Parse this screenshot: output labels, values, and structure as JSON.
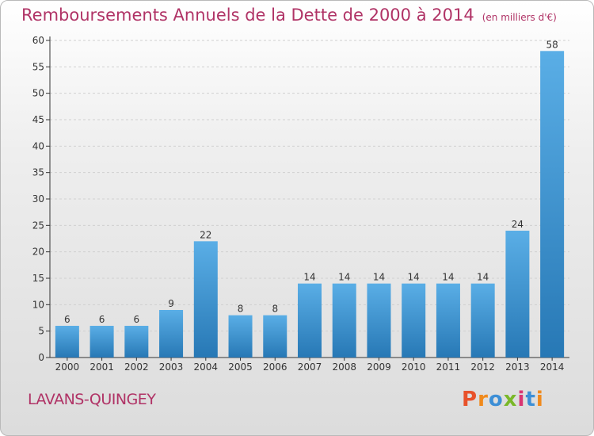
{
  "header": {
    "title": "Remboursements Annuels de la Dette de 2000 à 2014",
    "unit": "(en milliers d'€)"
  },
  "footer": {
    "place": "LAVANS-QUINGEY",
    "logo": [
      "P",
      "r",
      "o",
      "x",
      "i",
      "t",
      "i"
    ]
  },
  "colors": {
    "title": "#b03366",
    "bar_light": "#5aaee6",
    "bar_dark": "#2778b5",
    "grid": "#d0d0d0",
    "logo": [
      "#e8522b",
      "#f08a1c",
      "#3d8fd6",
      "#7ab829",
      "#d93572",
      "#3d8fd6",
      "#f08a1c"
    ]
  },
  "chart_data": {
    "type": "bar",
    "title": "Remboursements Annuels de la Dette de 2000 à 2014",
    "xlabel": "",
    "ylabel": "",
    "categories": [
      "2000",
      "2001",
      "2002",
      "2003",
      "2004",
      "2005",
      "2006",
      "2007",
      "2008",
      "2009",
      "2010",
      "2011",
      "2012",
      "2013",
      "2014"
    ],
    "values": [
      6,
      6,
      6,
      9,
      22,
      8,
      8,
      14,
      14,
      14,
      14,
      14,
      14,
      24,
      58
    ],
    "ylim": [
      0,
      60
    ],
    "yticks": [
      0,
      5,
      10,
      15,
      20,
      25,
      30,
      35,
      40,
      45,
      50,
      55,
      60
    ],
    "grid": true,
    "legend": "none"
  }
}
